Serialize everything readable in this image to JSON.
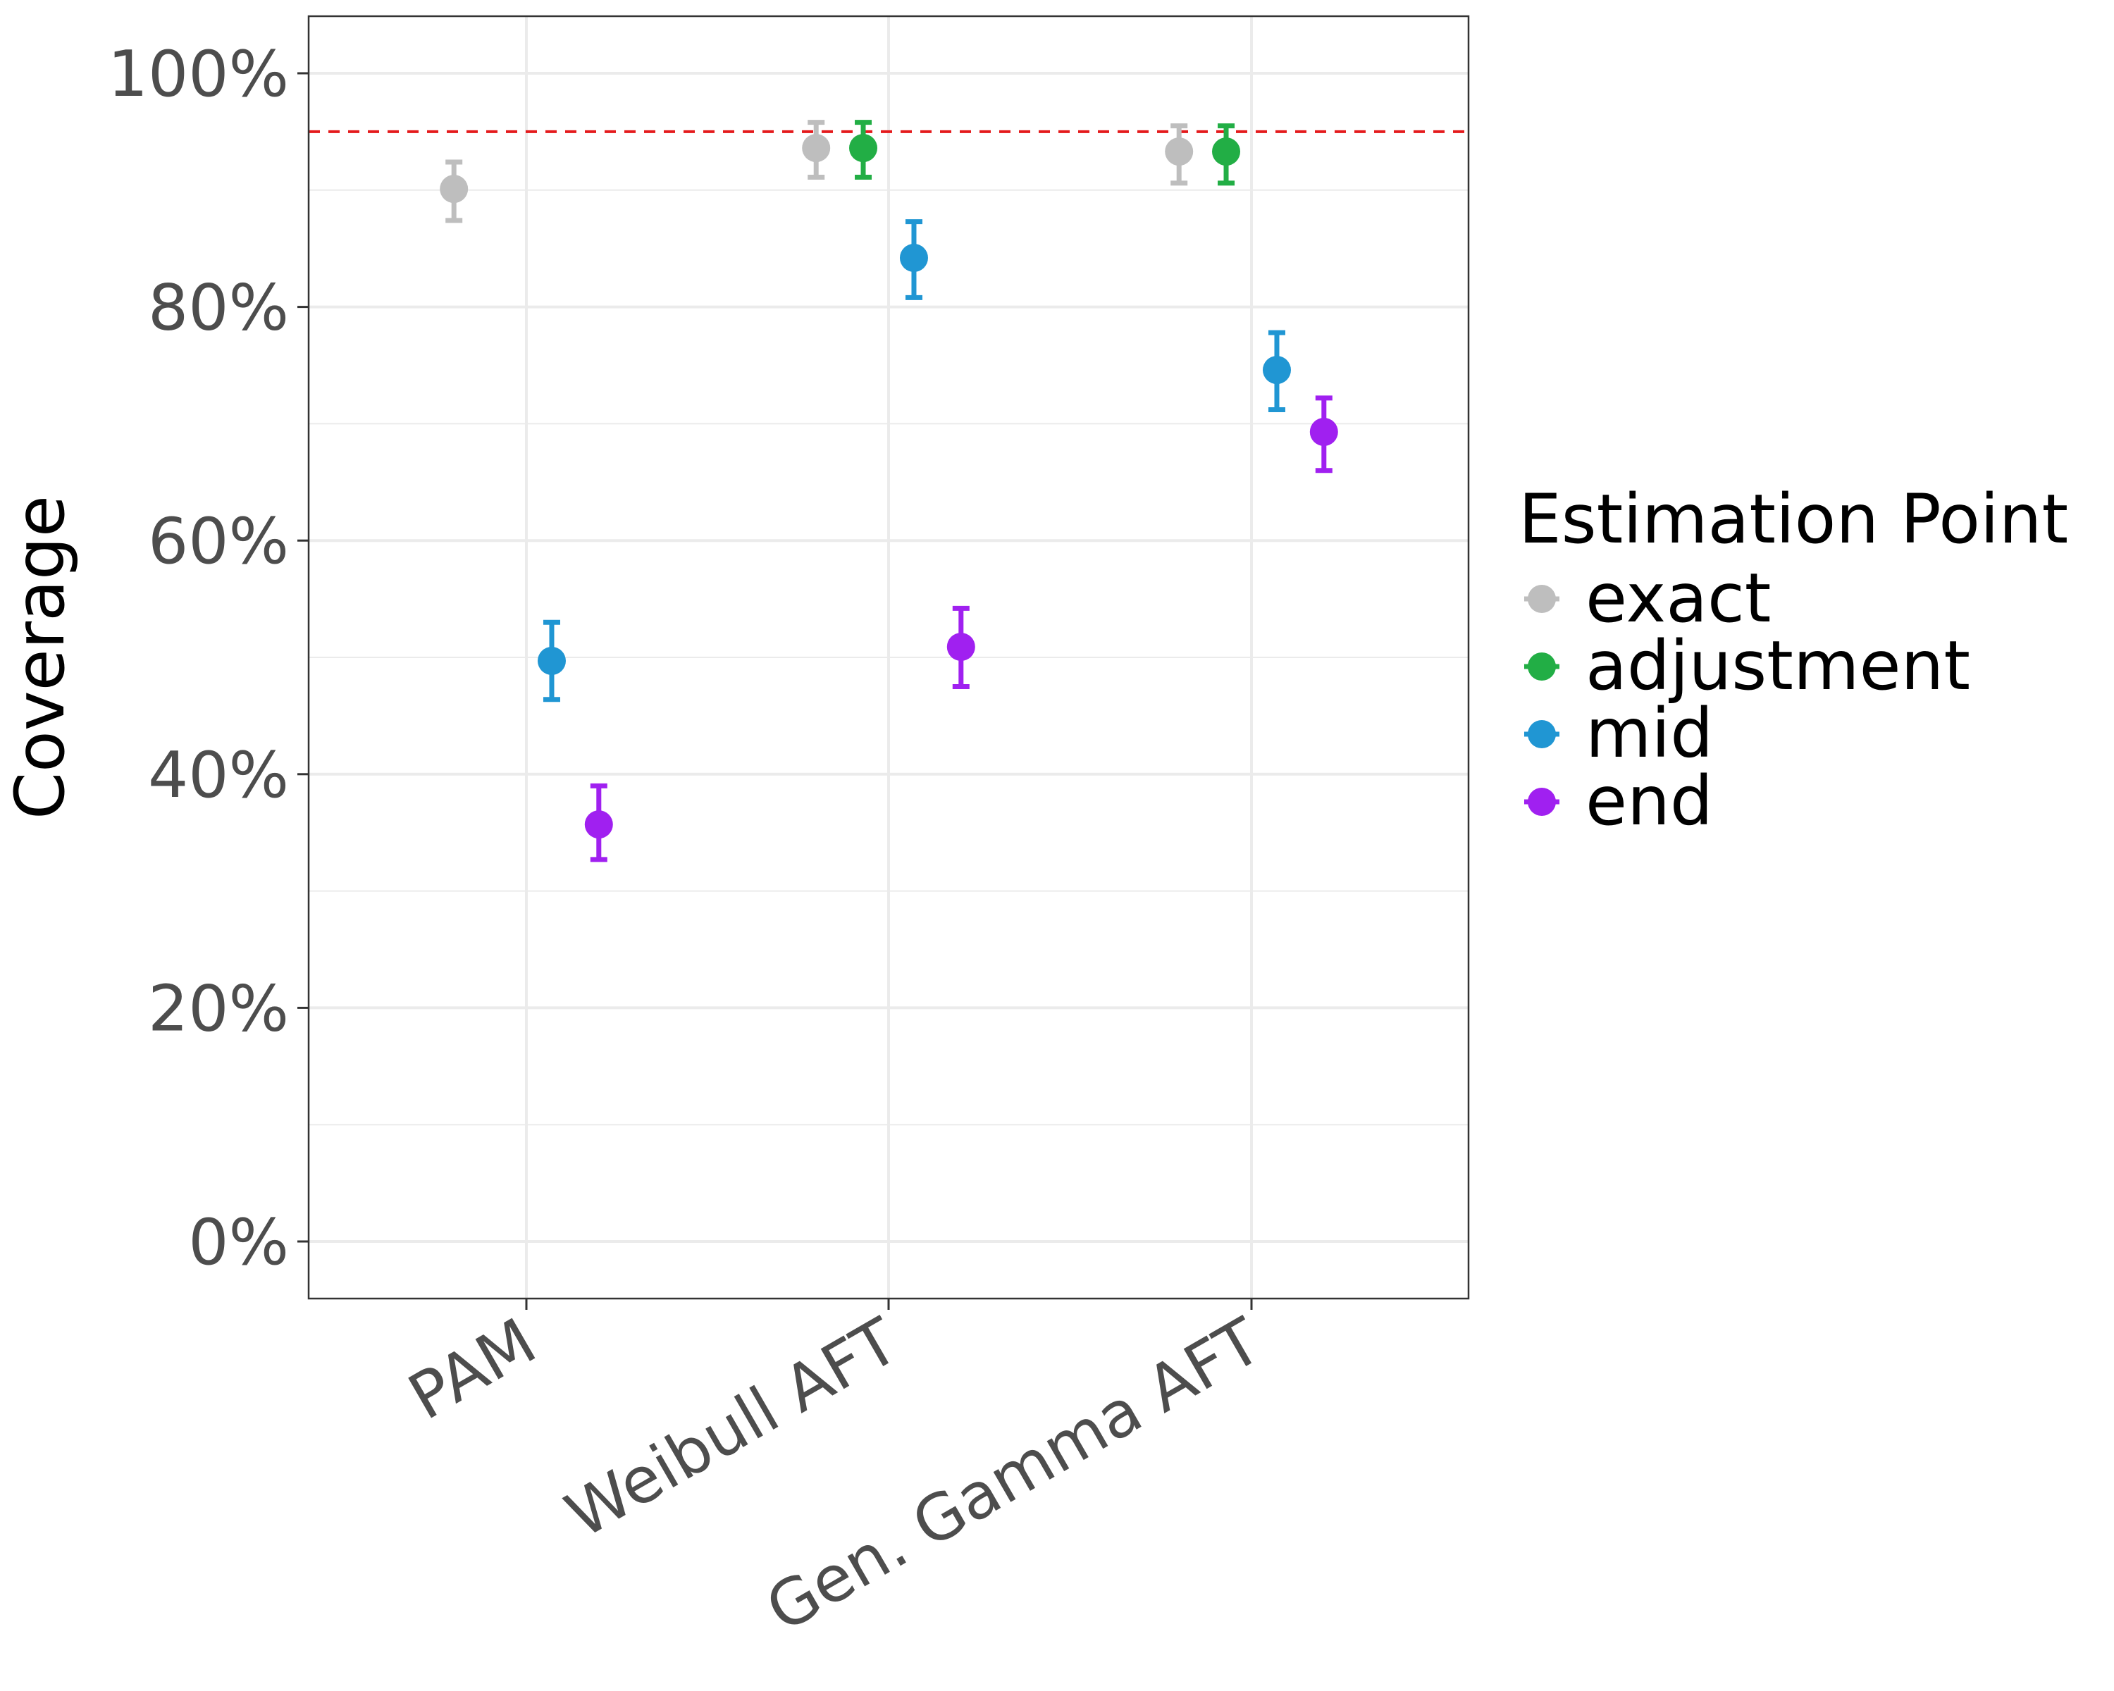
{
  "chart_data": {
    "type": "scatter",
    "ylabel": "Coverage",
    "xlabel": "",
    "ylim": [
      -0.05,
      1.05
    ],
    "yticks": [
      0,
      0.2,
      0.4,
      0.6,
      0.8,
      1.0
    ],
    "ytick_labels": [
      "0%",
      "20%",
      "40%",
      "60%",
      "80%",
      "100%"
    ],
    "categories": [
      "PAM",
      "Weibull AFT",
      "Gen. Gamma AFT"
    ],
    "reference_line": {
      "y": 0.95,
      "color": "#e41a1c",
      "style": "dashed"
    },
    "grid": true,
    "legend": {
      "title": "Estimation Point",
      "position": "right"
    },
    "series": [
      {
        "name": "exact",
        "color": "#bebebe",
        "offset": -0.2,
        "values": [
          0.901,
          0.936,
          0.933
        ],
        "lower": [
          0.874,
          0.911,
          0.906
        ],
        "upper": [
          0.924,
          0.958,
          0.955
        ]
      },
      {
        "name": "adjustment",
        "color": "#22ae45",
        "offset": -0.07,
        "values": [
          null,
          0.936,
          0.933
        ],
        "lower": [
          null,
          0.911,
          0.906
        ],
        "upper": [
          null,
          0.958,
          0.955
        ]
      },
      {
        "name": "mid",
        "color": "#2096d3",
        "offset": 0.07,
        "values": [
          0.497,
          0.842,
          0.746
        ],
        "lower": [
          0.464,
          0.808,
          0.712
        ],
        "upper": [
          0.53,
          0.873,
          0.778
        ]
      },
      {
        "name": "end",
        "color": "#a020f0",
        "offset": 0.2,
        "values": [
          0.357,
          0.509,
          0.693
        ],
        "lower": [
          0.327,
          0.475,
          0.66
        ],
        "upper": [
          0.39,
          0.542,
          0.722
        ]
      }
    ]
  }
}
